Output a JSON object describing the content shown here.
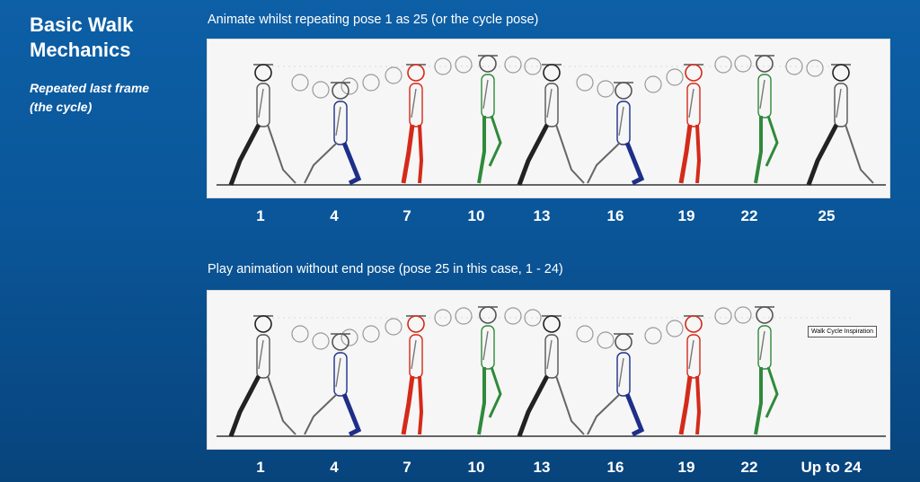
{
  "slide": {
    "title": "Basic Walk Mechanics",
    "subtitle": "Repeated last frame (the cycle)"
  },
  "top": {
    "caption": "Animate whilst repeating pose 1 as 25 (or the cycle pose)",
    "frames": [
      "1",
      "4",
      "7",
      "10",
      "13",
      "16",
      "19",
      "22",
      "25"
    ]
  },
  "bottom": {
    "caption": "Play animation without end pose (pose 25 in this case, 1 - 24)",
    "frames": [
      "1",
      "4",
      "7",
      "10",
      "13",
      "16",
      "19",
      "22",
      "Up to 24"
    ],
    "tooltip": "Walk Cycle Inspiration"
  },
  "colors": {
    "background": "#0b5aa0",
    "pose_black": "#222222",
    "pose_blue": "#1e2f8a",
    "pose_red": "#d42a1a",
    "pose_green": "#2f8a3a"
  }
}
